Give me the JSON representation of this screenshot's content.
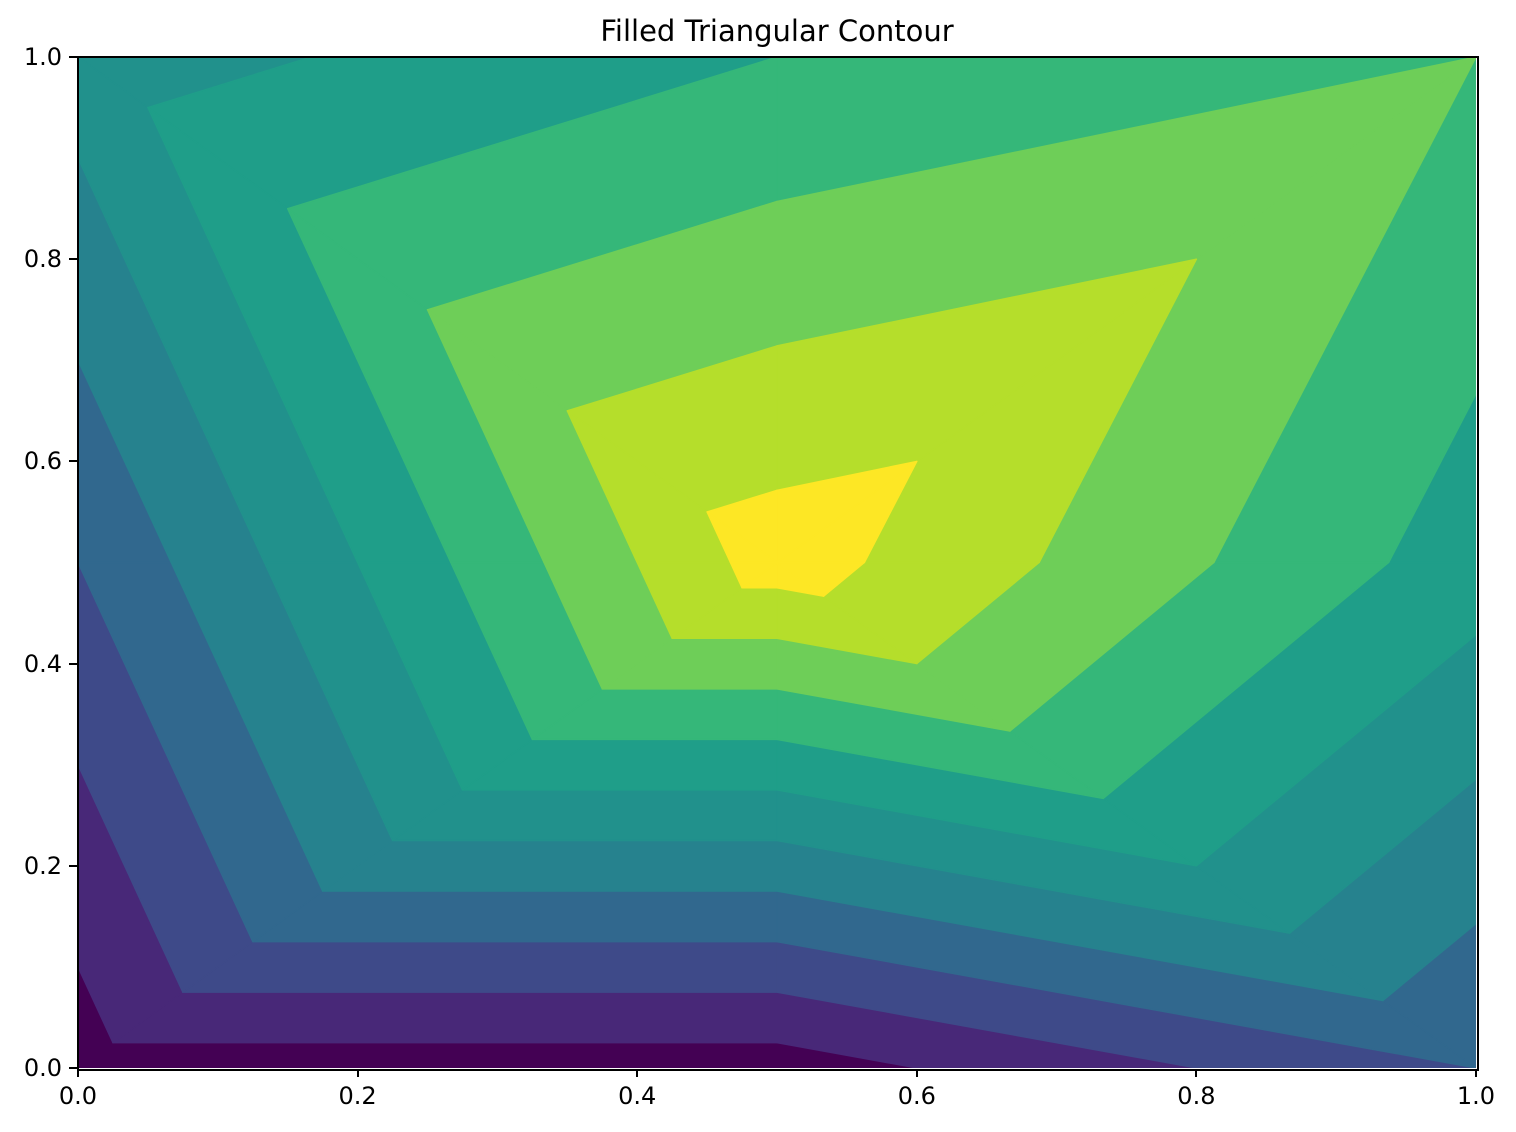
{
  "title": "Filled Triangular Contour",
  "axes": {
    "xlim": [
      0,
      1
    ],
    "ylim": [
      0,
      1
    ],
    "x_tick_labels": [
      "0.0",
      "0.2",
      "0.4",
      "0.6",
      "0.8",
      "1.0"
    ],
    "y_tick_labels": [
      "0.0",
      "0.2",
      "0.4",
      "0.6",
      "0.8",
      "1.0"
    ],
    "x_tick_values": [
      0.0,
      0.2,
      0.4,
      0.6,
      0.8,
      1.0
    ],
    "y_tick_values": [
      0.0,
      0.2,
      0.4,
      0.6,
      0.8,
      1.0
    ],
    "spine_color": "#000000",
    "tick_color": "#000000"
  },
  "chart_data": {
    "type": "tricontourf",
    "title": "Filled Triangular Contour",
    "colormap": "viridis",
    "xlabel": "",
    "ylabel": "",
    "xlim": [
      0,
      1
    ],
    "ylim": [
      0,
      1
    ],
    "grid": false,
    "legend": false,
    "points": [
      {
        "x": 0.0,
        "y": 0.0,
        "z": 0.5
      },
      {
        "x": 0.5,
        "y": 0.0,
        "z": 0.5
      },
      {
        "x": 1.0,
        "y": 0.0,
        "z": 3.0
      },
      {
        "x": 0.0,
        "y": 0.5,
        "z": 3.0
      },
      {
        "x": 0.5,
        "y": 0.5,
        "z": 10.5
      },
      {
        "x": 1.0,
        "y": 0.5,
        "z": 6.5
      },
      {
        "x": 0.0,
        "y": 1.0,
        "z": 5.5
      },
      {
        "x": 0.5,
        "y": 1.0,
        "z": 7.0
      },
      {
        "x": 1.0,
        "y": 1.0,
        "z": 8.0
      }
    ],
    "triangles": [
      [
        0,
        1,
        4
      ],
      [
        0,
        4,
        3
      ],
      [
        1,
        2,
        4
      ],
      [
        2,
        5,
        4
      ],
      [
        4,
        5,
        8
      ],
      [
        4,
        8,
        7
      ],
      [
        4,
        7,
        6
      ],
      [
        4,
        6,
        3
      ]
    ],
    "levels": [
      1,
      2,
      3,
      4,
      5,
      6,
      7,
      8,
      9,
      10
    ],
    "band_colors": [
      "#440154",
      "#482878",
      "#3e4a89",
      "#31688e",
      "#26828e",
      "#21918c",
      "#1f9e89",
      "#35b779",
      "#6ece58",
      "#b5de2b",
      "#fde725"
    ]
  }
}
